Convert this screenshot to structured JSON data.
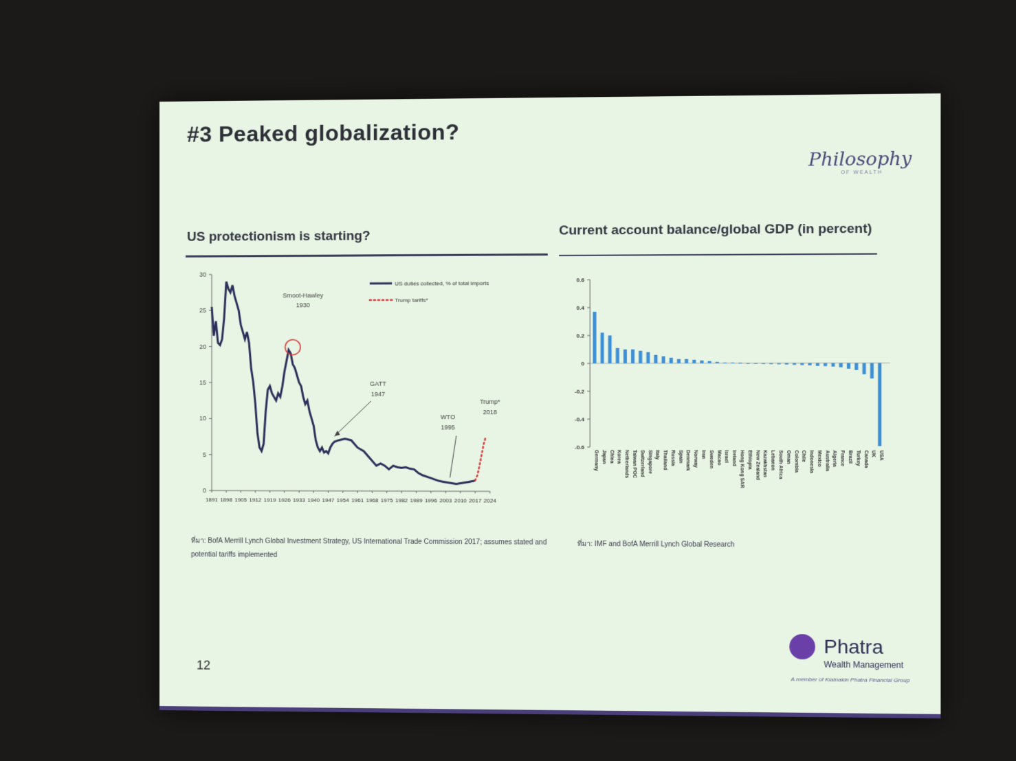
{
  "slide": {
    "title": "#3 Peaked globalization?",
    "brand": "Philosophy",
    "brand_sub": "OF WEALTH",
    "page_number": "12"
  },
  "left": {
    "heading": "US protectionism is starting?",
    "source": "ที่มา: BofA Merrill Lynch Global Investment Strategy, US International Trade Commission 2017; assumes stated and potential tariffs implemented"
  },
  "right": {
    "heading": "Current account balance/global GDP (in percent)",
    "source": "ที่มา: IMF and BofA Merrill Lynch Global Research"
  },
  "logo": {
    "name": "Phatra",
    "sub": "Wealth Management",
    "member": "A member of Kiatnakin Phatra Financial Group"
  },
  "chart_data": [
    {
      "type": "line",
      "xlim": [
        1891,
        2024
      ],
      "ylim": [
        0,
        30
      ],
      "x_ticks": [
        "1891",
        "1898",
        "1905",
        "1912",
        "1919",
        "1926",
        "1933",
        "1940",
        "1947",
        "1954",
        "1961",
        "1968",
        "1975",
        "1982",
        "1989",
        "1996",
        "2003",
        "2010",
        "2017",
        "2024"
      ],
      "y_ticks": [
        "0",
        "5",
        "10",
        "15",
        "20",
        "25",
        "30"
      ],
      "legend": [
        "US duties collected, % of total imports",
        "Trump tariffs*"
      ],
      "annotations": [
        {
          "text": "Smoot-Hawley",
          "text2": "1930"
        },
        {
          "text": "GATT",
          "text2": "1947"
        },
        {
          "text": "WTO",
          "text2": "1995"
        },
        {
          "text": "Trump*",
          "text2": "2018"
        }
      ],
      "series": [
        {
          "name": "US duties collected, % of total imports",
          "x": [
            1891,
            1892,
            1893,
            1894,
            1895,
            1896,
            1897,
            1898,
            1899,
            1900,
            1901,
            1902,
            1903,
            1904,
            1905,
            1906,
            1907,
            1908,
            1909,
            1910,
            1911,
            1912,
            1913,
            1914,
            1915,
            1916,
            1917,
            1918,
            1919,
            1920,
            1921,
            1922,
            1923,
            1924,
            1925,
            1926,
            1927,
            1928,
            1929,
            1930,
            1931,
            1932,
            1933,
            1934,
            1935,
            1936,
            1937,
            1938,
            1939,
            1940,
            1941,
            1942,
            1943,
            1944,
            1945,
            1946,
            1947,
            1948,
            1949,
            1950,
            1952,
            1955,
            1958,
            1961,
            1964,
            1967,
            1970,
            1972,
            1974,
            1976,
            1978,
            1980,
            1982,
            1984,
            1986,
            1988,
            1990,
            1992,
            1994,
            1996,
            1998,
            2000,
            2002,
            2004,
            2006,
            2008,
            2010,
            2012,
            2014,
            2016,
            2017
          ],
          "values": [
            25.5,
            21.5,
            23.5,
            20.5,
            20.2,
            21,
            24,
            29,
            28,
            27.5,
            28.5,
            27,
            26,
            25,
            23,
            22,
            21,
            22,
            20.5,
            17,
            15,
            12,
            8,
            6,
            5.5,
            6.5,
            11,
            14,
            14.5,
            13.5,
            13,
            12.5,
            13.5,
            13,
            14.5,
            16.5,
            18,
            19.5,
            19,
            17.5,
            17,
            16,
            15,
            14.5,
            13,
            12,
            12.5,
            11,
            10,
            9,
            7,
            6,
            5.5,
            6,
            5.3,
            5.5,
            5.2,
            6,
            6.5,
            6.8,
            7,
            7.2,
            7,
            6,
            5.5,
            4.5,
            3.5,
            3.8,
            3.5,
            3,
            3.5,
            3.3,
            3.2,
            3.3,
            3.1,
            3,
            2.5,
            2.2,
            2,
            1.8,
            1.6,
            1.4,
            1.3,
            1.2,
            1.1,
            1.0,
            1.1,
            1.2,
            1.3,
            1.4,
            1.5
          ]
        },
        {
          "name": "Trump tariffs*",
          "x": [
            2017,
            2018,
            2019,
            2020,
            2021,
            2022
          ],
          "values": [
            1.5,
            2.2,
            3.5,
            5.0,
            6.5,
            7.5
          ]
        }
      ]
    },
    {
      "type": "bar",
      "ylim": [
        -0.6,
        0.6
      ],
      "y_ticks": [
        "0.6",
        "0.4",
        "0.2",
        "0",
        "-0.2",
        "-0.4",
        "-0.6"
      ],
      "categories": [
        "Germany",
        "Japan",
        "China",
        "Korea",
        "Netherlands",
        "Taiwan POC",
        "Switzerland",
        "Singapore",
        "Italy",
        "Thailand",
        "Russia",
        "Spain",
        "Denmark",
        "Norway",
        "Iran",
        "Sweden",
        "Macao",
        "Israel",
        "Ireland",
        "Hong Kong SAR",
        "Ethiopia",
        "New Zealand",
        "Kazakhstan",
        "Lebanon",
        "South Africa",
        "Oman",
        "Colombia",
        "Chile",
        "Indonesia",
        "Mexico",
        "Australia",
        "Algeria",
        "France",
        "Brazil",
        "Turkey",
        "Canada",
        "UK",
        "USA"
      ],
      "values": [
        0.37,
        0.22,
        0.2,
        0.11,
        0.1,
        0.1,
        0.09,
        0.08,
        0.06,
        0.05,
        0.04,
        0.03,
        0.03,
        0.025,
        0.02,
        0.015,
        0.01,
        0.005,
        0.005,
        0.003,
        -0.005,
        -0.005,
        -0.006,
        -0.007,
        -0.008,
        -0.01,
        -0.012,
        -0.014,
        -0.016,
        -0.02,
        -0.022,
        -0.025,
        -0.03,
        -0.04,
        -0.05,
        -0.08,
        -0.11,
        -0.59
      ]
    }
  ]
}
